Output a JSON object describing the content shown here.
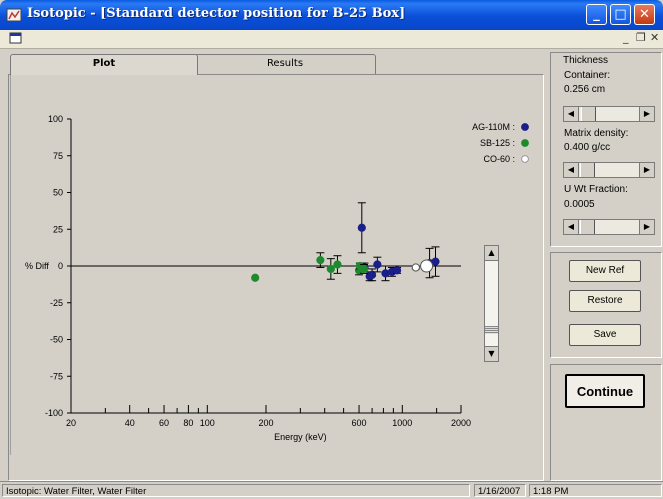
{
  "window": {
    "title": "Isotopic - [Standard detector position for B-25 Box]",
    "accent": "#0a4fd8"
  },
  "title_buttons": {
    "minimize": "_",
    "maximize": "□",
    "close": "✕"
  },
  "mdi_controls": {
    "minimize": "_",
    "restore": "❐",
    "close": "✕"
  },
  "tabs": [
    {
      "label": "Plot",
      "active": true
    },
    {
      "label": "Results",
      "active": false
    }
  ],
  "chart_data": {
    "type": "scatter",
    "x_scale": "log",
    "xlabel": "Energy (keV)",
    "ylabel": "% Diff",
    "xlim": [
      20,
      2000
    ],
    "ylim": [
      -100,
      100
    ],
    "x_tick_labels": [
      "20",
      "40",
      "60",
      "80",
      "100",
      "200",
      "600",
      "1000",
      "2000"
    ],
    "x_tick_values": [
      20,
      40,
      60,
      80,
      100,
      200,
      600,
      1000,
      2000
    ],
    "y_tick_labels": [
      "100",
      "75",
      "50",
      "25",
      "0",
      "-25",
      "-50",
      "-75",
      "-100"
    ],
    "y_tick_values": [
      100,
      75,
      50,
      25,
      0,
      -25,
      -50,
      -75,
      -100
    ],
    "legend_position": "top-right",
    "series": [
      {
        "name": "AG-110M :",
        "color": "#1a1f8a",
        "points": [
          {
            "x": 620,
            "y": 26,
            "err": 17
          },
          {
            "x": 640,
            "y": -1,
            "err": 3
          },
          {
            "x": 680,
            "y": -7,
            "err": 3
          },
          {
            "x": 700,
            "y": -6,
            "err": 4
          },
          {
            "x": 745,
            "y": 1,
            "err": 5
          },
          {
            "x": 820,
            "y": -5,
            "err": 5
          },
          {
            "x": 885,
            "y": -4,
            "err": 3
          },
          {
            "x": 940,
            "y": -3,
            "err": 2
          },
          {
            "x": 1380,
            "y": 2,
            "err": 10
          },
          {
            "x": 1480,
            "y": 3,
            "err": 10
          }
        ]
      },
      {
        "name": "SB-125 :",
        "color": "#1e8a2e",
        "points": [
          {
            "x": 176,
            "y": -8,
            "err": 0
          },
          {
            "x": 380,
            "y": 4,
            "err": 5
          },
          {
            "x": 430,
            "y": -2,
            "err": 7
          },
          {
            "x": 465,
            "y": 1,
            "err": 6
          },
          {
            "x": 600,
            "y": -3,
            "err": 3
          },
          {
            "x": 606,
            "y": 0,
            "err": 2
          },
          {
            "x": 636,
            "y": -2,
            "err": 3
          }
        ]
      },
      {
        "name": "CO-60 :",
        "color": "#ffffff",
        "points": [
          {
            "x": 1173,
            "y": -1,
            "err": 1
          },
          {
            "x": 1332,
            "y": 0,
            "err": 1
          }
        ]
      }
    ]
  },
  "right_panel": {
    "group_title": "Thickness",
    "container_label": "Container:",
    "container_value": "0.256 cm",
    "matrix_label": "Matrix density:",
    "matrix_value": "0.400   g/cc",
    "uwt_label": "U Wt Fraction:",
    "uwt_value": "0.0005",
    "buttons": {
      "new_ref": "New Ref",
      "restore": "Restore",
      "save": "Save",
      "continue": "Continue"
    }
  },
  "status": {
    "message": "Isotopic: Water Filter, Water Filter",
    "date": "1/16/2007",
    "time": "1:18 PM"
  }
}
